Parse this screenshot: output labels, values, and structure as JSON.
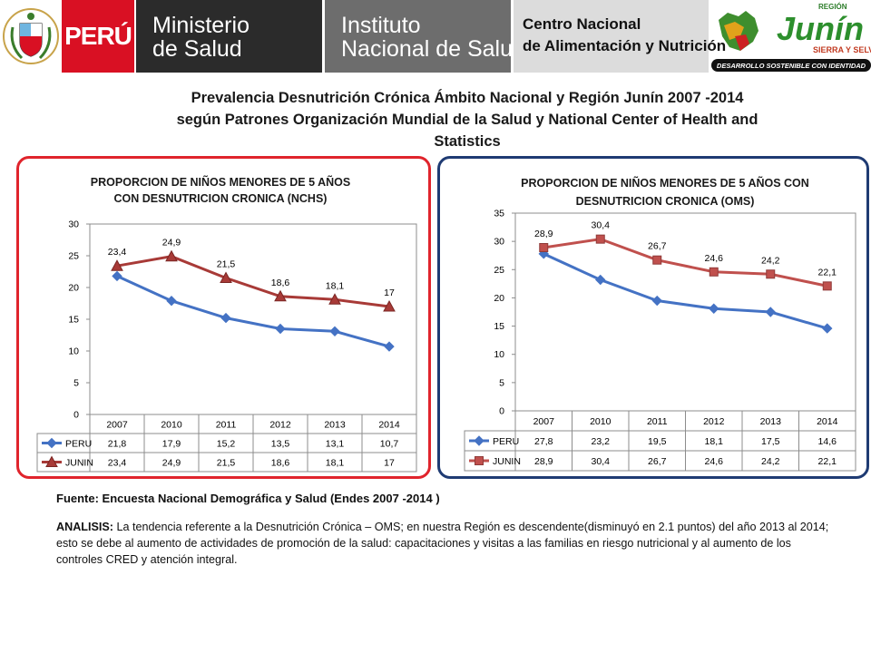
{
  "header": {
    "peru": "PERÚ",
    "ministerio_l1": "Ministerio",
    "ministerio_l2": "de Salud",
    "instituto_l1": "Instituto",
    "instituto_l2": "Nacional de Salud",
    "centro_l1": "Centro Nacional",
    "centro_l2": "de Alimentación y Nutrición",
    "region_small": "REGIÓN",
    "region_name": "Junín",
    "region_tag": "SIERRA Y SELVA",
    "region_banner": "DESARROLLO SOSTENIBLE CON IDENTIDAD",
    "crest_text": "REPÚBLICA DEL PERÚ"
  },
  "title_lines": [
    "Prevalencia Desnutrición Crónica  Ámbito Nacional y Región Junín 2007 -2014",
    "según Patrones Organización Mundial  de la Salud y National Center of Health and",
    "Statistics"
  ],
  "chart_data": [
    {
      "type": "line",
      "title_lines": [
        "PROPORCION DE NIÑOS MENORES DE 5 AÑOS",
        "CON DESNUTRICION CRONICA (NCHS)"
      ],
      "categories": [
        "2007",
        "2010",
        "2011",
        "2012",
        "2013",
        "2014"
      ],
      "ylim": [
        0,
        30
      ],
      "yticks": [
        0,
        5,
        10,
        15,
        20,
        25,
        30
      ],
      "grid": false,
      "legend": "data-table",
      "series": [
        {
          "name": "PERU",
          "values": [
            21.8,
            17.9,
            15.2,
            13.5,
            13.1,
            10.7
          ],
          "labels": [
            "21,8",
            "17,9",
            "15,2",
            "13,5",
            "13,1",
            "10,7"
          ],
          "color": "#4472c4",
          "marker": "diamond"
        },
        {
          "name": "JUNIN",
          "values": [
            23.4,
            24.9,
            21.5,
            18.6,
            18.1,
            17
          ],
          "labels": [
            "23,4",
            "24,9",
            "21,5",
            "18,6",
            "18,1",
            "17"
          ],
          "color": "#a83a37",
          "marker": "triangle"
        }
      ],
      "point_labels_series": "JUNIN"
    },
    {
      "type": "line",
      "title_lines": [
        "PROPORCION DE NIÑOS MENORES DE 5 AÑOS CON",
        "DESNUTRICION CRONICA (OMS)"
      ],
      "categories": [
        "2007",
        "2010",
        "2011",
        "2012",
        "2013",
        "2014"
      ],
      "ylim": [
        0,
        35
      ],
      "yticks": [
        0,
        5,
        10,
        15,
        20,
        25,
        30,
        35
      ],
      "grid": false,
      "legend": "data-table",
      "series": [
        {
          "name": "PERU",
          "values": [
            27.8,
            23.2,
            19.5,
            18.1,
            17.5,
            14.6
          ],
          "labels": [
            "27,8",
            "23,2",
            "19,5",
            "18,1",
            "17,5",
            "14,6"
          ],
          "color": "#4472c4",
          "marker": "diamond"
        },
        {
          "name": "JUNIN",
          "values": [
            28.9,
            30.4,
            26.7,
            24.6,
            24.2,
            22.1
          ],
          "labels": [
            "28,9",
            "30,4",
            "26,7",
            "24,6",
            "24,2",
            "22,1"
          ],
          "color": "#c0504d",
          "marker": "square"
        }
      ],
      "point_labels_series": "JUNIN"
    }
  ],
  "footer": {
    "fuente": "Fuente: Encuesta Nacional  Demográfica y Salud (Endes 2007 -2014 )",
    "analisis_label": "ANALISIS:",
    "analisis_text": " La tendencia  referente a  la Desnutrición Crónica – OMS; en nuestra Región es descendente(disminuyó  en 2.1 puntos) del año 2013 al 2014; esto se debe  al aumento de actividades de promoción de la salud: capacitaciones  y visitas  a las  familias en riesgo nutricional  y al aumento de los controles CRED  y atención integral."
  }
}
